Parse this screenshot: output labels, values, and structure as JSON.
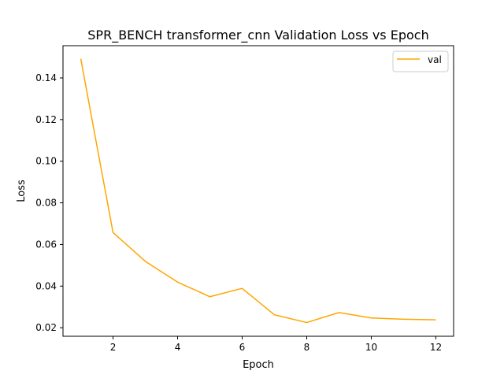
{
  "chart_data": {
    "type": "line",
    "title": "SPR_BENCH transformer_cnn Validation Loss vs Epoch",
    "xlabel": "Epoch",
    "ylabel": "Loss",
    "xlim": [
      0.45,
      12.55
    ],
    "ylim": [
      0.0159,
      0.1555
    ],
    "xticks": [
      2,
      4,
      6,
      8,
      10,
      12
    ],
    "xtick_labels": [
      "2",
      "4",
      "6",
      "8",
      "10",
      "12"
    ],
    "yticks": [
      0.02,
      0.04,
      0.06,
      0.08,
      0.1,
      0.12,
      0.14
    ],
    "ytick_labels": [
      "0.02",
      "0.04",
      "0.06",
      "0.08",
      "0.10",
      "0.12",
      "0.14"
    ],
    "grid": false,
    "legend_position": "top-right",
    "series": [
      {
        "name": "val",
        "color": "#ffa500",
        "x": [
          1,
          2,
          3,
          4,
          5,
          6,
          7,
          8,
          9,
          10,
          11,
          12
        ],
        "y": [
          0.1492,
          0.0657,
          0.0519,
          0.0419,
          0.0349,
          0.0389,
          0.0262,
          0.0225,
          0.0273,
          0.0247,
          0.0241,
          0.0238
        ]
      }
    ]
  }
}
